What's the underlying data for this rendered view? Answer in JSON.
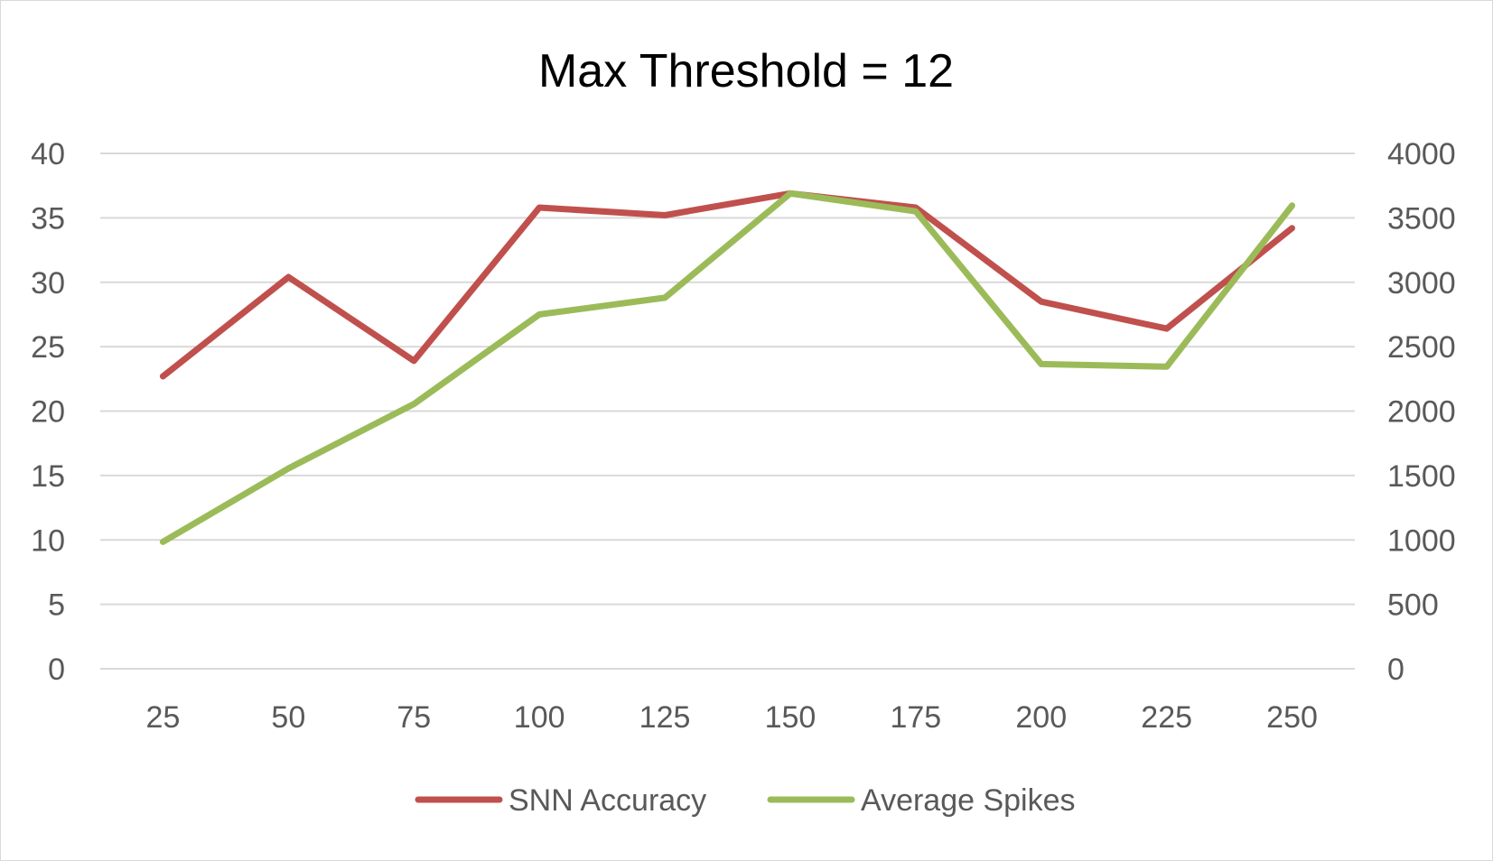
{
  "chart_data": {
    "type": "line",
    "title": "Max Threshold = 12",
    "xlabel": "",
    "ylabel": "",
    "categories": [
      "25",
      "50",
      "75",
      "100",
      "125",
      "150",
      "175",
      "200",
      "225",
      "250"
    ],
    "y_left": {
      "min": 0,
      "max": 40,
      "step": 5,
      "ticks": [
        "0",
        "5",
        "10",
        "15",
        "20",
        "25",
        "30",
        "35",
        "40"
      ]
    },
    "y_right": {
      "min": 0,
      "max": 4000,
      "step": 500,
      "ticks": [
        "0",
        "500",
        "1000",
        "1500",
        "2000",
        "2500",
        "3000",
        "3500",
        "4000"
      ]
    },
    "grid": true,
    "legend_position": "bottom",
    "series": [
      {
        "name": "SNN Accuracy",
        "axis": "left",
        "color": "#c0504d",
        "values": [
          22.7,
          30.4,
          23.9,
          35.8,
          35.2,
          36.9,
          35.8,
          28.5,
          26.4,
          34.2
        ]
      },
      {
        "name": "Average Spikes",
        "axis": "right",
        "color": "#9bbb59",
        "values": [
          985,
          1555,
          2055,
          2750,
          2880,
          3690,
          3550,
          2365,
          2345,
          3595
        ]
      }
    ]
  }
}
